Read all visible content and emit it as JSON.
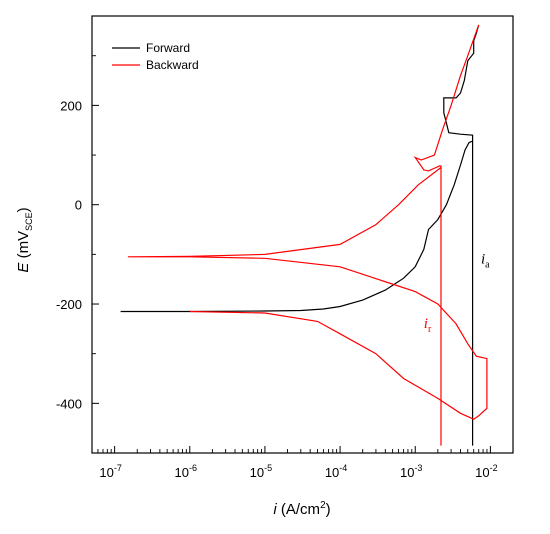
{
  "chart_data": {
    "type": "line",
    "xscale": "log",
    "xlim": [
      5e-08,
      0.02
    ],
    "ylim": [
      -500,
      380
    ],
    "xlabel": {
      "var": "i",
      "rest": " (A/cm",
      "sup": "2",
      "close": ")"
    },
    "ylabel": {
      "var": "E",
      "rest": " (mV",
      "sub": "SCE",
      "close": ")"
    },
    "xticks": [
      {
        "value": 1e-07,
        "base": "10",
        "exp": "-7"
      },
      {
        "value": 1e-06,
        "base": "10",
        "exp": "-6"
      },
      {
        "value": 1e-05,
        "base": "10",
        "exp": "-5"
      },
      {
        "value": 0.0001,
        "base": "10",
        "exp": "-4"
      },
      {
        "value": 0.001,
        "base": "10",
        "exp": "-3"
      },
      {
        "value": 0.01,
        "base": "10",
        "exp": "-2"
      }
    ],
    "yticks": [
      {
        "value": -400,
        "label": "-400"
      },
      {
        "value": -200,
        "label": "-200"
      },
      {
        "value": 0,
        "label": "0"
      },
      {
        "value": 200,
        "label": "200"
      }
    ],
    "ytick_minor": [
      -500,
      -300,
      -100,
      100,
      300
    ],
    "legend": {
      "position": "top-left"
    },
    "series": [
      {
        "name": "Forward",
        "color": "#000000",
        "points": [
          [
            1.2e-07,
            -215
          ],
          [
            1e-06,
            -215
          ],
          [
            1e-05,
            -214
          ],
          [
            3e-05,
            -213
          ],
          [
            6e-05,
            -210
          ],
          [
            0.0001,
            -205
          ],
          [
            0.0002,
            -192
          ],
          [
            0.0004,
            -172
          ],
          [
            0.0007,
            -148
          ],
          [
            0.001,
            -125
          ],
          [
            0.0013,
            -90
          ],
          [
            0.0015,
            -50
          ],
          [
            0.002,
            -30
          ],
          [
            0.0026,
            0
          ],
          [
            0.0033,
            40
          ],
          [
            0.004,
            80
          ],
          [
            0.0046,
            110
          ],
          [
            0.0052,
            125
          ],
          [
            0.0058,
            128
          ],
          [
            0.0058,
            -485
          ],
          [
            0.0058,
            140
          ],
          [
            0.004,
            142
          ],
          [
            0.0028,
            145
          ],
          [
            0.0025,
            175
          ],
          [
            0.0024,
            185
          ],
          [
            0.0024,
            215
          ],
          [
            0.0035,
            215
          ],
          [
            0.004,
            225
          ],
          [
            0.0045,
            250
          ],
          [
            0.005,
            290
          ],
          [
            0.006,
            305
          ],
          [
            0.006,
            330
          ],
          [
            0.0065,
            345
          ],
          [
            0.007,
            362
          ]
        ]
      },
      {
        "name": "Backward",
        "color": "#ff0000",
        "points": [
          [
            0.007,
            362
          ],
          [
            0.005,
            300
          ],
          [
            0.004,
            260
          ],
          [
            0.003,
            200
          ],
          [
            0.0023,
            150
          ],
          [
            0.0018,
            100
          ],
          [
            0.0012,
            90
          ],
          [
            0.001,
            95
          ],
          [
            0.0013,
            70
          ],
          [
            0.0015,
            68
          ],
          [
            0.0021,
            78
          ],
          [
            0.0022,
            78
          ],
          [
            0.0022,
            -485
          ],
          [
            0.0022,
            75
          ],
          [
            0.0011,
            40
          ],
          [
            0.0006,
            0
          ],
          [
            0.0003,
            -40
          ],
          [
            0.0001,
            -80
          ],
          [
            1e-05,
            -100
          ],
          [
            1e-06,
            -104
          ],
          [
            1.5e-07,
            -105
          ],
          [
            1e-06,
            -105
          ],
          [
            1e-05,
            -108
          ],
          [
            0.0001,
            -125
          ],
          [
            0.001,
            -175
          ],
          [
            0.002,
            -200
          ],
          [
            0.0035,
            -240
          ],
          [
            0.005,
            -280
          ],
          [
            0.0065,
            -305
          ],
          [
            0.009,
            -310
          ],
          [
            0.009,
            -410
          ],
          [
            0.007,
            -425
          ],
          [
            0.006,
            -432
          ],
          [
            0.004,
            -420
          ],
          [
            0.002,
            -390
          ],
          [
            0.0007,
            -350
          ],
          [
            0.0003,
            -300
          ],
          [
            0.0001,
            -260
          ],
          [
            5e-05,
            -235
          ],
          [
            1e-05,
            -218
          ],
          [
            1e-06,
            -215
          ]
        ]
      }
    ],
    "annotations": [
      {
        "var": "i",
        "sub": "a",
        "color": "#000000",
        "x": 0.0075,
        "y": -118
      },
      {
        "var": "i",
        "sub": "r",
        "color": "#ff0000",
        "x": 0.0013,
        "y": -248
      }
    ]
  }
}
